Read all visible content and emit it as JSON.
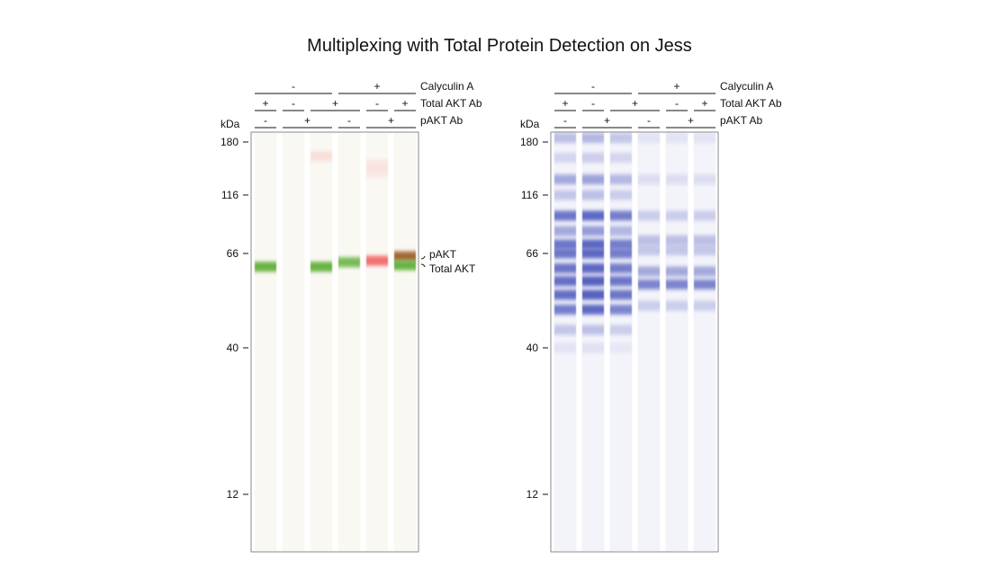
{
  "title": "Multiplexing with Total Protein Detection on Jess",
  "colors": {
    "green": "#62b03a",
    "red": "#f25a5a",
    "brown": "#9a5a20",
    "purple": "#5560bf",
    "box_border": "#8a8a8a"
  },
  "axis_unit": "kDa",
  "ticks": [
    180,
    116,
    66,
    40,
    12
  ],
  "rows": [
    {
      "label": "Calyculin A",
      "segments": [
        {
          "sign": "-",
          "lanes": [
            1,
            3
          ]
        },
        {
          "sign": "+",
          "lanes": [
            4,
            6
          ]
        }
      ]
    },
    {
      "label": "Total AKT Ab",
      "segments": [
        {
          "sign": "+",
          "lanes": [
            1,
            1
          ]
        },
        {
          "sign": "-",
          "lanes": [
            2,
            2
          ]
        },
        {
          "sign": "+",
          "lanes": [
            3,
            4
          ]
        },
        {
          "sign": "-",
          "lanes": [
            5,
            5
          ]
        },
        {
          "sign": "+",
          "lanes": [
            6,
            6
          ]
        }
      ]
    },
    {
      "label": "pAKT Ab",
      "segments": [
        {
          "sign": "-",
          "lanes": [
            1,
            1
          ]
        },
        {
          "sign": "+",
          "lanes": [
            2,
            3
          ]
        },
        {
          "sign": "-",
          "lanes": [
            4,
            4
          ]
        },
        {
          "sign": "+",
          "lanes": [
            5,
            6
          ]
        }
      ]
    }
  ],
  "band_labels": [
    "pAKT",
    "Total AKT"
  ],
  "panels": [
    {
      "name": "immunoassay",
      "lanes": [
        [
          {
            "kda": 61.5,
            "color": "green",
            "intensity": 0.95
          }
        ],
        [],
        [
          {
            "kda": 160,
            "color": "red",
            "intensity": 0.15
          },
          {
            "kda": 61.5,
            "color": "green",
            "intensity": 0.95
          }
        ],
        [
          {
            "kda": 63,
            "color": "green",
            "intensity": 0.85
          }
        ],
        [
          {
            "kda": 150,
            "color": "red",
            "intensity": 0.1
          },
          {
            "kda": 140,
            "color": "red",
            "intensity": 0.1
          },
          {
            "kda": 63.5,
            "color": "red",
            "intensity": 0.85
          }
        ],
        [
          {
            "kda": 65,
            "color": "brown",
            "intensity": 0.9
          },
          {
            "kda": 62,
            "color": "green",
            "intensity": 0.95
          }
        ]
      ]
    },
    {
      "name": "total-protein",
      "lanes": [
        [
          {
            "kda": 186,
            "color": "purple",
            "intensity": 0.35
          },
          {
            "kda": 158,
            "color": "purple",
            "intensity": 0.2
          },
          {
            "kda": 132,
            "color": "purple",
            "intensity": 0.5
          },
          {
            "kda": 116,
            "color": "purple",
            "intensity": 0.3
          },
          {
            "kda": 95,
            "color": "purple",
            "intensity": 0.85
          },
          {
            "kda": 82,
            "color": "purple",
            "intensity": 0.5
          },
          {
            "kda": 72,
            "color": "purple",
            "intensity": 0.85
          },
          {
            "kda": 66,
            "color": "purple",
            "intensity": 0.85
          },
          {
            "kda": 61,
            "color": "purple",
            "intensity": 0.85
          },
          {
            "kda": 57,
            "color": "purple",
            "intensity": 0.9
          },
          {
            "kda": 53,
            "color": "purple",
            "intensity": 0.9
          },
          {
            "kda": 49,
            "color": "purple",
            "intensity": 0.8
          },
          {
            "kda": 44,
            "color": "purple",
            "intensity": 0.3
          },
          {
            "kda": 40,
            "color": "purple",
            "intensity": 0.1
          }
        ],
        [
          {
            "kda": 186,
            "color": "purple",
            "intensity": 0.4
          },
          {
            "kda": 158,
            "color": "purple",
            "intensity": 0.25
          },
          {
            "kda": 132,
            "color": "purple",
            "intensity": 0.55
          },
          {
            "kda": 116,
            "color": "purple",
            "intensity": 0.35
          },
          {
            "kda": 95,
            "color": "purple",
            "intensity": 0.95
          },
          {
            "kda": 82,
            "color": "purple",
            "intensity": 0.6
          },
          {
            "kda": 72,
            "color": "purple",
            "intensity": 0.95
          },
          {
            "kda": 66,
            "color": "purple",
            "intensity": 0.95
          },
          {
            "kda": 61,
            "color": "purple",
            "intensity": 0.95
          },
          {
            "kda": 57,
            "color": "purple",
            "intensity": 1.0
          },
          {
            "kda": 53,
            "color": "purple",
            "intensity": 1.0
          },
          {
            "kda": 49,
            "color": "purple",
            "intensity": 0.95
          },
          {
            "kda": 44,
            "color": "purple",
            "intensity": 0.35
          },
          {
            "kda": 40,
            "color": "purple",
            "intensity": 0.12
          }
        ],
        [
          {
            "kda": 186,
            "color": "purple",
            "intensity": 0.3
          },
          {
            "kda": 158,
            "color": "purple",
            "intensity": 0.2
          },
          {
            "kda": 132,
            "color": "purple",
            "intensity": 0.4
          },
          {
            "kda": 116,
            "color": "purple",
            "intensity": 0.25
          },
          {
            "kda": 95,
            "color": "purple",
            "intensity": 0.8
          },
          {
            "kda": 82,
            "color": "purple",
            "intensity": 0.4
          },
          {
            "kda": 72,
            "color": "purple",
            "intensity": 0.8
          },
          {
            "kda": 66,
            "color": "purple",
            "intensity": 0.8
          },
          {
            "kda": 61,
            "color": "purple",
            "intensity": 0.8
          },
          {
            "kda": 57,
            "color": "purple",
            "intensity": 0.85
          },
          {
            "kda": 53,
            "color": "purple",
            "intensity": 0.85
          },
          {
            "kda": 49,
            "color": "purple",
            "intensity": 0.75
          },
          {
            "kda": 44,
            "color": "purple",
            "intensity": 0.25
          },
          {
            "kda": 40,
            "color": "purple",
            "intensity": 0.08
          }
        ],
        [
          {
            "kda": 186,
            "color": "purple",
            "intensity": 0.1
          },
          {
            "kda": 132,
            "color": "purple",
            "intensity": 0.15
          },
          {
            "kda": 95,
            "color": "purple",
            "intensity": 0.25
          },
          {
            "kda": 75,
            "color": "purple",
            "intensity": 0.35
          },
          {
            "kda": 68,
            "color": "purple",
            "intensity": 0.3
          },
          {
            "kda": 60,
            "color": "purple",
            "intensity": 0.5
          },
          {
            "kda": 56,
            "color": "purple",
            "intensity": 0.75
          },
          {
            "kda": 50,
            "color": "purple",
            "intensity": 0.25
          }
        ],
        [
          {
            "kda": 186,
            "color": "purple",
            "intensity": 0.1
          },
          {
            "kda": 132,
            "color": "purple",
            "intensity": 0.15
          },
          {
            "kda": 95,
            "color": "purple",
            "intensity": 0.25
          },
          {
            "kda": 75,
            "color": "purple",
            "intensity": 0.35
          },
          {
            "kda": 68,
            "color": "purple",
            "intensity": 0.3
          },
          {
            "kda": 60,
            "color": "purple",
            "intensity": 0.5
          },
          {
            "kda": 56,
            "color": "purple",
            "intensity": 0.75
          },
          {
            "kda": 50,
            "color": "purple",
            "intensity": 0.25
          }
        ],
        [
          {
            "kda": 186,
            "color": "purple",
            "intensity": 0.1
          },
          {
            "kda": 132,
            "color": "purple",
            "intensity": 0.15
          },
          {
            "kda": 95,
            "color": "purple",
            "intensity": 0.25
          },
          {
            "kda": 75,
            "color": "purple",
            "intensity": 0.35
          },
          {
            "kda": 68,
            "color": "purple",
            "intensity": 0.3
          },
          {
            "kda": 60,
            "color": "purple",
            "intensity": 0.5
          },
          {
            "kda": 56,
            "color": "purple",
            "intensity": 0.75
          },
          {
            "kda": 50,
            "color": "purple",
            "intensity": 0.25
          }
        ]
      ]
    }
  ]
}
